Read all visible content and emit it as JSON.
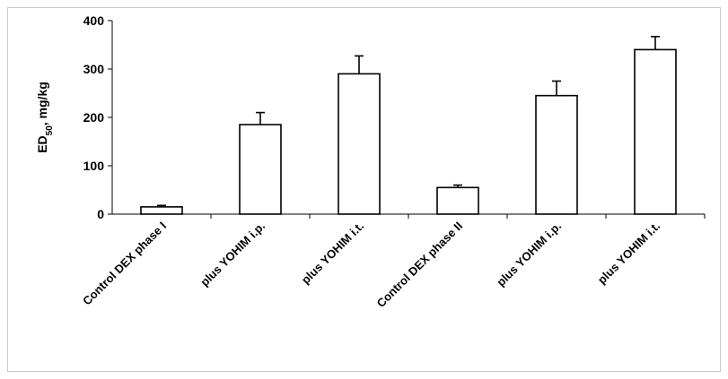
{
  "chart_data": {
    "type": "bar",
    "title": "",
    "xlabel": "",
    "ylabel": "ED50, mg/kg",
    "ylabel_main": "ED",
    "ylabel_sub": "50",
    "ylabel_rest": ", mg/kg",
    "ylim": [
      0,
      400
    ],
    "yticks": [
      0,
      100,
      200,
      300,
      400
    ],
    "grid": false,
    "legend": "none",
    "bar_fill": "#ffffff",
    "bar_stroke": "#000000",
    "categories": [
      "Control DEX phase I",
      "plus YOHIM i.p.",
      "plus YOHIM i.t.",
      "Control  DEX phase II",
      "plus YOHIM i.p.",
      "plus YOHIM i.t."
    ],
    "values": [
      15,
      185,
      290,
      55,
      245,
      340
    ],
    "errors": [
      3,
      25,
      37,
      5,
      30,
      27
    ]
  }
}
